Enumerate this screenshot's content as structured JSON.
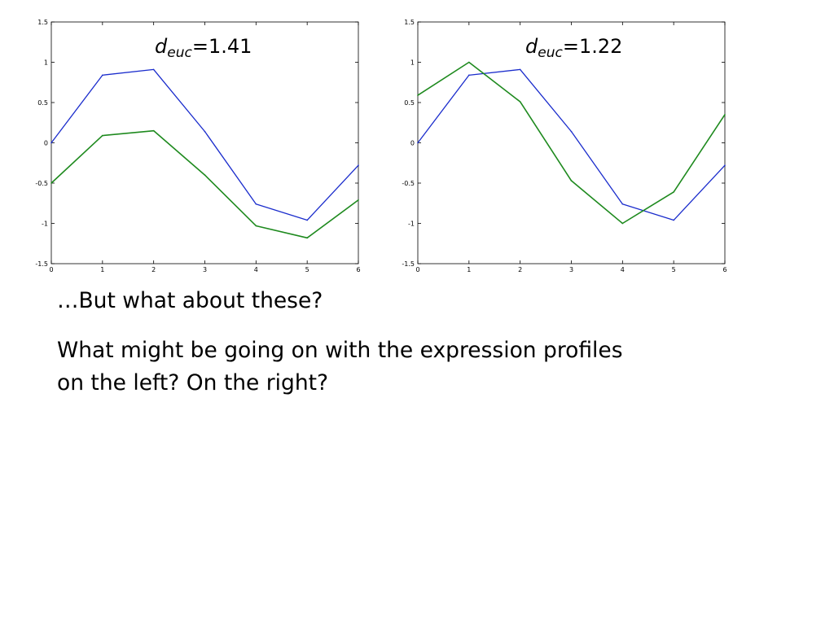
{
  "chart_data": [
    {
      "type": "line",
      "title": "",
      "xlabel": "",
      "ylabel": "",
      "xlim": [
        0,
        6
      ],
      "ylim": [
        -1.5,
        1.5
      ],
      "xticks": [
        0,
        1,
        2,
        3,
        4,
        5,
        6
      ],
      "xtick_labels": [
        "0",
        "1",
        "2",
        "3",
        "4",
        "5",
        "6"
      ],
      "yticks": [
        1.5,
        1,
        0.5,
        0,
        -0.5,
        -1,
        -1.5
      ],
      "ytick_labels": [
        "1.5",
        "1",
        "0.5",
        "0",
        "-0.5",
        "-1",
        "-1.5"
      ],
      "grid": false,
      "annotation": {
        "d": "d",
        "sub": "euc",
        "value": "=1.41"
      },
      "x": [
        0,
        1,
        2,
        3,
        4,
        5,
        6
      ],
      "series": [
        {
          "color": "#1a2ccc",
          "values": [
            0.0,
            0.84,
            0.91,
            0.14,
            -0.76,
            -0.96,
            -0.28
          ]
        },
        {
          "color": "#1e8a1e",
          "values": [
            -0.5,
            0.09,
            0.15,
            -0.4,
            -1.03,
            -1.18,
            -0.71
          ]
        }
      ]
    },
    {
      "type": "line",
      "title": "",
      "xlabel": "",
      "ylabel": "",
      "xlim": [
        0,
        6
      ],
      "ylim": [
        -1.5,
        1.5
      ],
      "xticks": [
        0,
        1,
        2,
        3,
        4,
        5,
        6
      ],
      "xtick_labels": [
        "0",
        "1",
        "2",
        "3",
        "4",
        "5",
        "6"
      ],
      "yticks": [
        1.5,
        1,
        0.5,
        0,
        -0.5,
        -1,
        -1.5
      ],
      "ytick_labels": [
        "1.5",
        "1",
        "0.5",
        "0",
        "-0.5",
        "-1",
        "-1.5"
      ],
      "grid": false,
      "annotation": {
        "d": "d",
        "sub": "euc",
        "value": "=1.22"
      },
      "x": [
        0,
        1,
        2,
        3,
        4,
        5,
        6
      ],
      "series": [
        {
          "color": "#1a2ccc",
          "values": [
            0.0,
            0.84,
            0.91,
            0.14,
            -0.76,
            -0.96,
            -0.28
          ]
        },
        {
          "color": "#1e8a1e",
          "values": [
            0.59,
            1.0,
            0.51,
            -0.47,
            -1.0,
            -0.61,
            0.35
          ]
        }
      ]
    }
  ],
  "text": {
    "question": "…But what about these?",
    "body_line1": "What might be going on with the expression profiles",
    "body_line2": "on the left?  On the right?"
  }
}
